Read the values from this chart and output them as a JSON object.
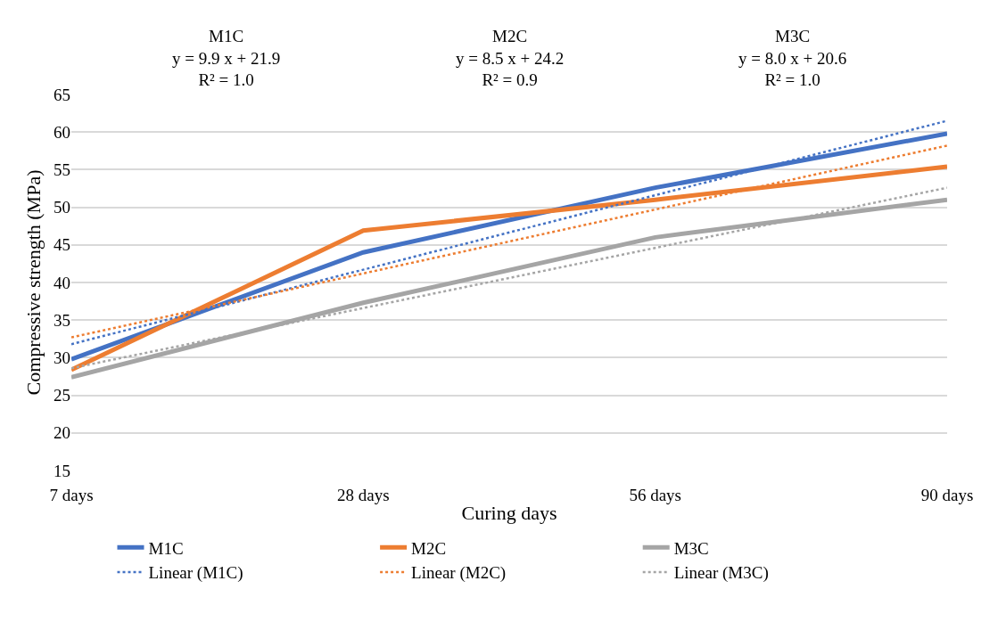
{
  "chart_data": {
    "type": "line",
    "xlabel": "Curing days",
    "ylabel": "Compressive strength (MPa)",
    "categories": [
      "7 days",
      "28 days",
      "56 days",
      "90 days"
    ],
    "series": [
      {
        "name": "M1C",
        "color": "#4472c4",
        "values": [
          29.8,
          44.0,
          52.6,
          59.8
        ],
        "line_style": "solid"
      },
      {
        "name": "M2C",
        "color": "#ed7d31",
        "values": [
          28.4,
          46.9,
          51.0,
          55.4
        ],
        "line_style": "solid"
      },
      {
        "name": "M3C",
        "color": "#a5a5a5",
        "values": [
          27.4,
          37.3,
          46.0,
          51.0
        ],
        "line_style": "solid"
      },
      {
        "name": "Linear (M1C)",
        "color": "#4472c4",
        "values": [
          31.8,
          41.7,
          51.6,
          61.5
        ],
        "line_style": "dotted"
      },
      {
        "name": "Linear (M2C)",
        "color": "#ed7d31",
        "values": [
          32.7,
          41.2,
          49.7,
          58.2
        ],
        "line_style": "dotted"
      },
      {
        "name": "Linear (M3C)",
        "color": "#a5a5a5",
        "values": [
          28.6,
          36.6,
          44.6,
          52.6
        ],
        "line_style": "dotted"
      }
    ],
    "annotations": [
      "M1C\ny = 9.9 x + 21.9\nR² = 1.0",
      "M2C\ny = 8.5 x + 24.2\nR² = 0.9",
      "M3C\ny = 8.0 x + 20.6\nR² = 1.0"
    ],
    "ylim": [
      15,
      65
    ],
    "yticks": [
      15,
      20,
      25,
      30,
      35,
      40,
      45,
      50,
      55,
      60,
      65
    ],
    "grid": "y",
    "legend": "bottom",
    "marker": "none"
  }
}
